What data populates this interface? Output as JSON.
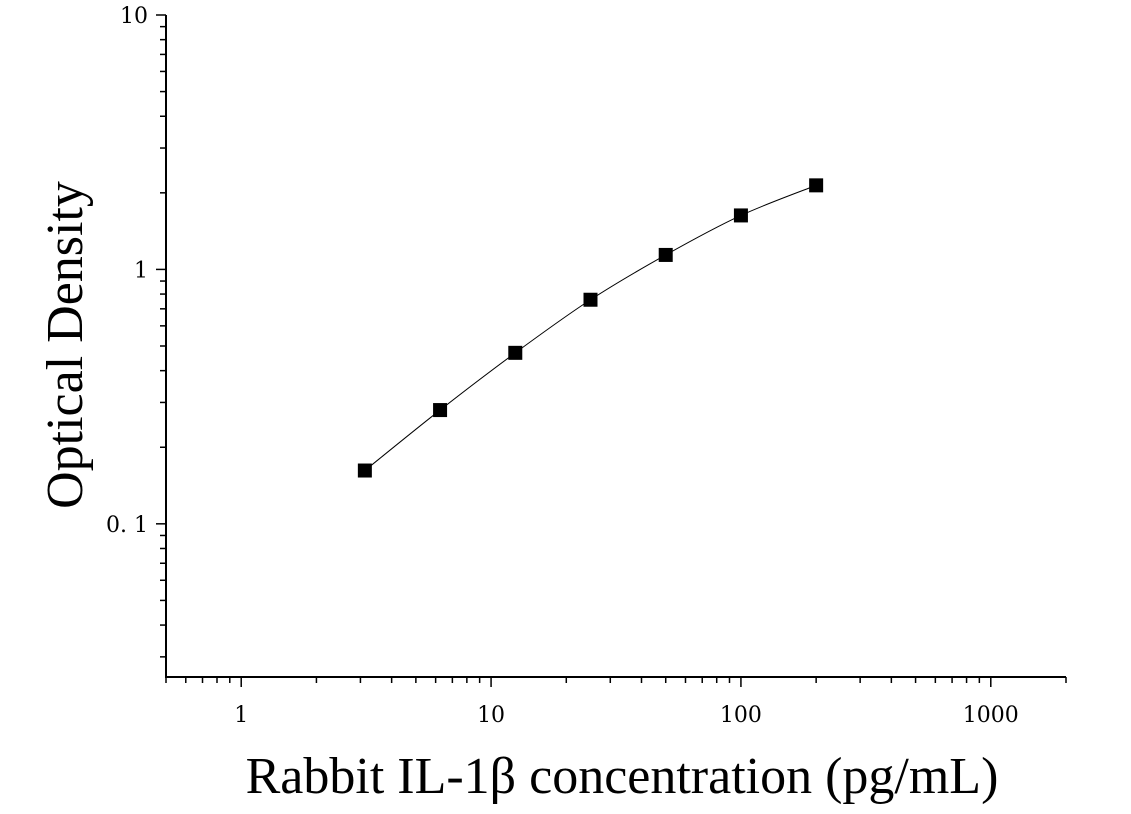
{
  "chart_data": {
    "type": "scatter",
    "title": "",
    "xlabel": "Rabbit IL-1β concentration (pg/mL)",
    "ylabel": "Optical Density",
    "x_scale": "log",
    "y_scale": "log",
    "xlim": [
      0.5,
      2000
    ],
    "ylim": [
      0.025,
      10
    ],
    "grid": false,
    "legend": "none",
    "x_ticks": [
      1,
      10,
      100,
      1000
    ],
    "x_tick_labels": [
      "1",
      "10",
      "100",
      "1000"
    ],
    "y_ticks": [
      0.1,
      1,
      10
    ],
    "y_tick_labels": [
      "0. 1",
      "1",
      "10"
    ],
    "series": [
      {
        "marker": "square",
        "color": "#000000",
        "fit_line": true,
        "points": [
          {
            "x": 3.125,
            "y": 0.162
          },
          {
            "x": 6.25,
            "y": 0.28
          },
          {
            "x": 12.5,
            "y": 0.47
          },
          {
            "x": 25,
            "y": 0.76
          },
          {
            "x": 50,
            "y": 1.14
          },
          {
            "x": 100,
            "y": 1.63
          },
          {
            "x": 200,
            "y": 2.14
          }
        ]
      }
    ]
  }
}
